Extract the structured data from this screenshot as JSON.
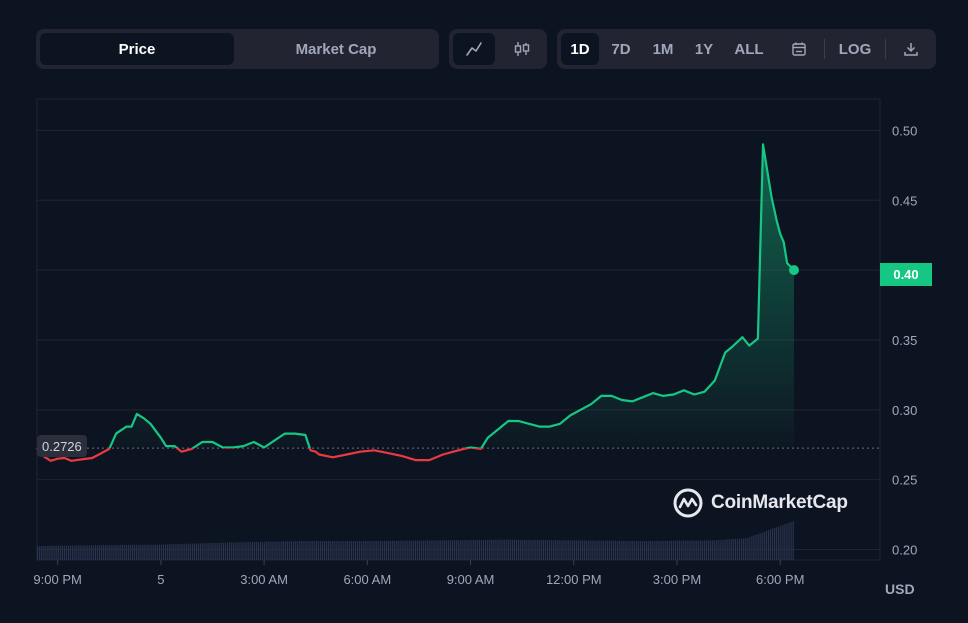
{
  "metric_tabs": {
    "price": "Price",
    "market_cap": "Market Cap",
    "active": "price"
  },
  "chart_type_icons": {
    "line": "line-chart-icon",
    "candle": "candlestick-icon",
    "active": "line"
  },
  "ranges": [
    "1D",
    "7D",
    "1M",
    "1Y",
    "ALL"
  ],
  "active_range": "1D",
  "calendar_icon": "calendar-icon",
  "log_label": "LOG",
  "download_icon": "download-icon",
  "watermark": "CoinMarketCap",
  "current_price_label": "0.40",
  "reference_price_label": "0.2726",
  "currency": "USD",
  "colors": {
    "up": "#16c784",
    "down": "#ea3943",
    "background": "#0d1421",
    "panel": "#222531",
    "grid": "#222531",
    "volume": "#2a3350"
  },
  "chart_data": {
    "type": "line",
    "xlabel": "",
    "ylabel": "",
    "ylim": [
      0.1925,
      0.5225
    ],
    "y_ticks": [
      0.2,
      0.25,
      0.3,
      0.35,
      0.4,
      0.45,
      0.5
    ],
    "y_tick_labels": [
      "0.20",
      "0.25",
      "0.30",
      "0.35",
      "0.40",
      "0.45",
      "0.50"
    ],
    "x_range_hours": [
      -3.6,
      20.9
    ],
    "x_tick_positions_hours": [
      -3,
      0,
      3,
      6,
      9,
      12,
      15,
      18
    ],
    "x_tick_labels": [
      "9:00 PM",
      "5",
      "3:00 AM",
      "6:00 AM",
      "9:00 AM",
      "12:00 PM",
      "3:00 PM",
      "6:00 PM"
    ],
    "reference_value": 0.2726,
    "x_hours": [
      -3.6,
      -3.4,
      -3.2,
      -3.0,
      -2.8,
      -2.6,
      -2.3,
      -2.0,
      -1.8,
      -1.5,
      -1.3,
      -1.0,
      -0.85,
      -0.7,
      -0.5,
      -0.3,
      -0.15,
      0.0,
      0.15,
      0.4,
      0.6,
      0.9,
      1.2,
      1.5,
      1.8,
      2.1,
      2.4,
      2.7,
      3.0,
      3.3,
      3.6,
      3.9,
      4.2,
      4.35,
      4.5,
      4.6,
      5.0,
      5.4,
      5.8,
      6.2,
      6.6,
      7.0,
      7.4,
      7.8,
      8.2,
      8.5,
      8.8,
      9.0,
      9.3,
      9.5,
      9.8,
      10.1,
      10.4,
      10.7,
      11.0,
      11.3,
      11.6,
      11.9,
      12.2,
      12.5,
      12.8,
      13.1,
      13.4,
      13.7,
      14.0,
      14.3,
      14.6,
      14.9,
      15.2,
      15.5,
      15.8,
      16.1,
      16.4,
      16.6,
      16.9,
      17.1,
      17.35,
      17.5,
      17.75,
      17.9,
      18.0,
      18.1,
      18.2,
      18.4
    ],
    "values": [
      0.2726,
      0.2665,
      0.2635,
      0.265,
      0.2655,
      0.2635,
      0.2645,
      0.2655,
      0.268,
      0.272,
      0.283,
      0.288,
      0.288,
      0.297,
      0.294,
      0.29,
      0.285,
      0.28,
      0.274,
      0.274,
      0.27,
      0.272,
      0.277,
      0.277,
      0.273,
      0.273,
      0.274,
      0.277,
      0.273,
      0.278,
      0.283,
      0.283,
      0.282,
      0.271,
      0.27,
      0.268,
      0.266,
      0.268,
      0.27,
      0.271,
      0.269,
      0.267,
      0.264,
      0.264,
      0.268,
      0.27,
      0.272,
      0.273,
      0.272,
      0.28,
      0.286,
      0.292,
      0.292,
      0.29,
      0.288,
      0.288,
      0.29,
      0.296,
      0.3,
      0.304,
      0.31,
      0.31,
      0.307,
      0.306,
      0.309,
      0.312,
      0.31,
      0.311,
      0.314,
      0.311,
      0.313,
      0.321,
      0.341,
      0.345,
      0.352,
      0.346,
      0.351,
      0.49,
      0.452,
      0.435,
      0.426,
      0.42,
      0.405,
      0.4
    ],
    "volume": {
      "x_hours": [
        -3.6,
        -2.0,
        0.0,
        2.0,
        4.0,
        6.0,
        8.0,
        10.0,
        12.0,
        14.0,
        16.0,
        17.0,
        17.5,
        18.0,
        18.4
      ],
      "values": [
        0.2,
        0.21,
        0.22,
        0.25,
        0.27,
        0.27,
        0.28,
        0.29,
        0.28,
        0.27,
        0.28,
        0.31,
        0.4,
        0.49,
        0.56
      ]
    }
  }
}
